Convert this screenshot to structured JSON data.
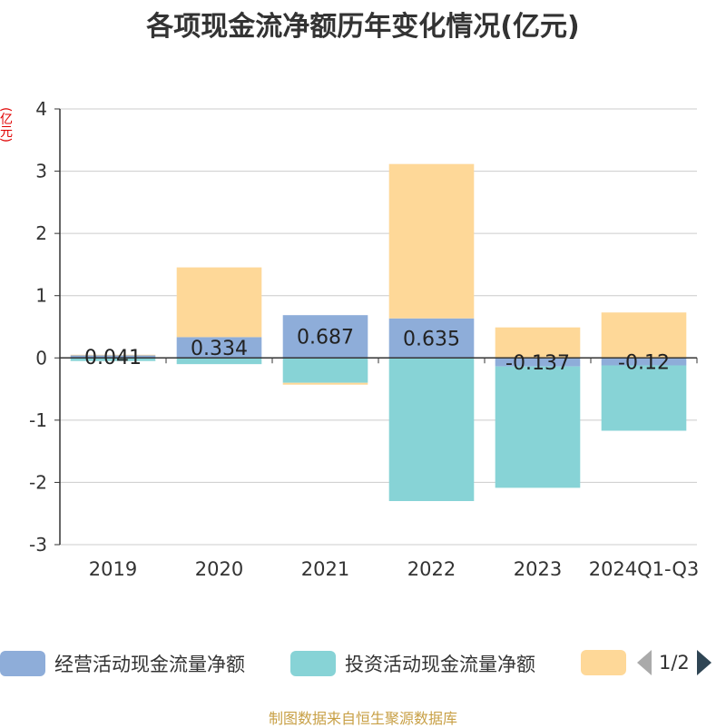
{
  "title": "各项现金流净额历年变化情况(亿元)",
  "y_unit": "(亿元)",
  "source_note": "制图数据来自恒生聚源数据库",
  "legend": {
    "items": [
      {
        "label": "经营活动现金流量净额",
        "color": "#8eadd9"
      },
      {
        "label": "投资活动现金流量净额",
        "color": "#87d3d6"
      },
      {
        "label": "",
        "color": "#fed898"
      }
    ],
    "pager": "1/2"
  },
  "chart_data": {
    "type": "bar",
    "stacked": true,
    "categories": [
      "2019",
      "2020",
      "2021",
      "2022",
      "2023",
      "2024Q1-Q3"
    ],
    "series": [
      {
        "name": "经营活动现金流量净额",
        "color": "#8eadd9",
        "values": [
          0.041,
          0.334,
          0.687,
          0.635,
          -0.137,
          -0.12
        ],
        "labels": [
          "0.041",
          "0.334",
          "0.687",
          "0.635",
          "-0.137",
          "-0.12"
        ]
      },
      {
        "name": "投资活动现金流量净额",
        "color": "#87d3d6",
        "values": [
          -0.05,
          -0.1,
          -0.4,
          -2.3,
          -1.95,
          -1.05
        ]
      },
      {
        "color": "#fed898",
        "values": [
          0.01,
          1.12,
          -0.03,
          2.48,
          0.49,
          0.73
        ]
      }
    ],
    "ylim": [
      -3,
      4
    ],
    "yticks": [
      4,
      3,
      2,
      1,
      0,
      -1,
      -2,
      -3
    ],
    "grid": true
  }
}
